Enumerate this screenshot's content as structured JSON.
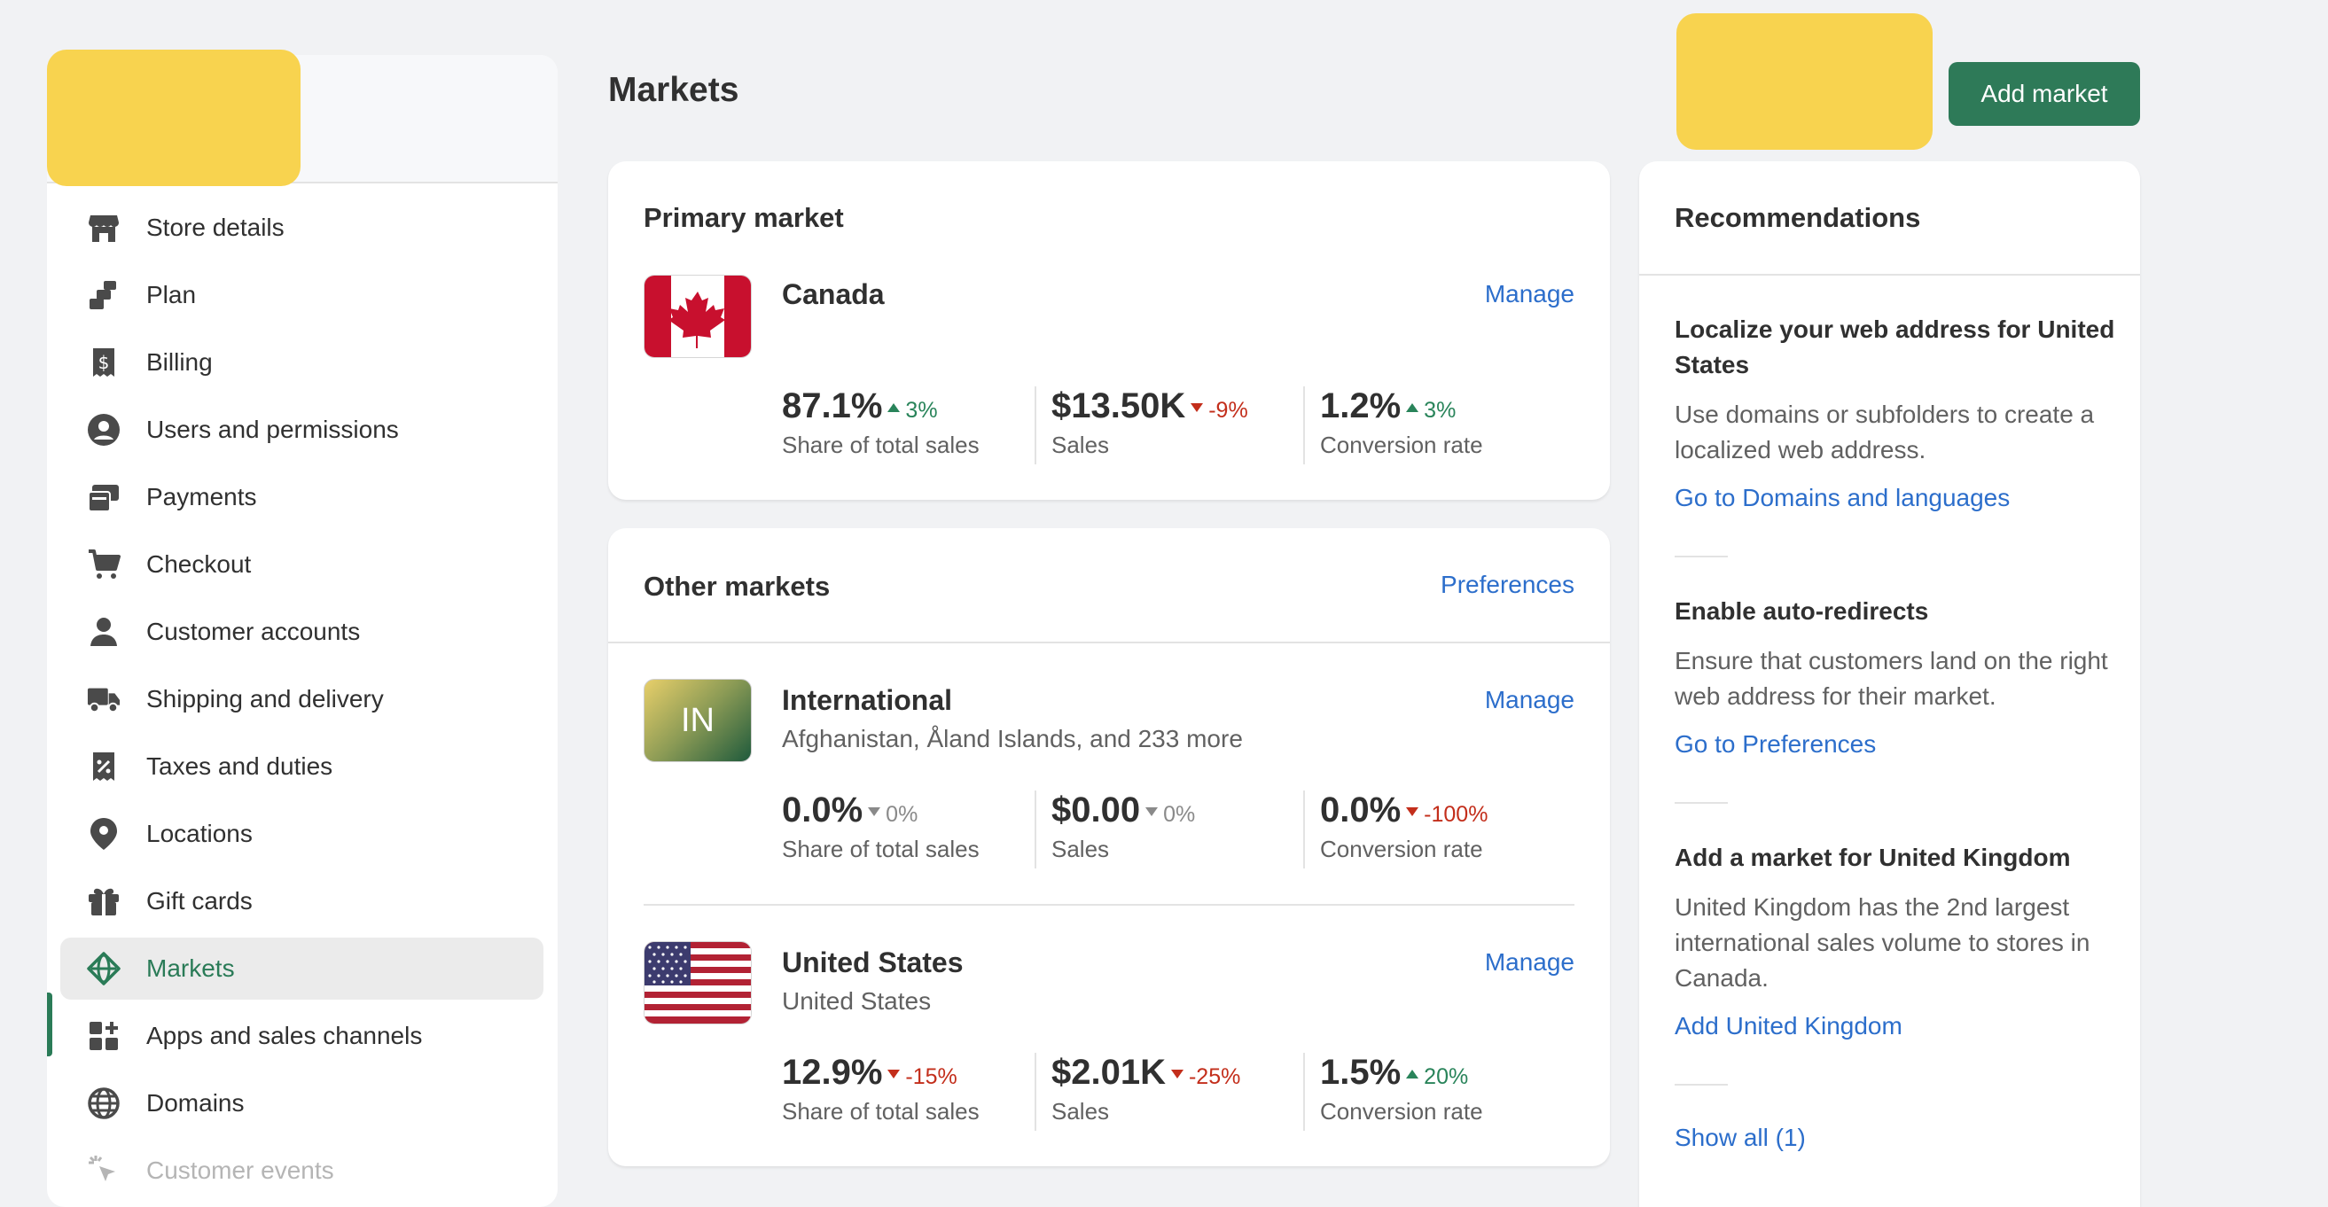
{
  "sidebar": {
    "items": [
      {
        "label": "Store details",
        "icon": "store-icon"
      },
      {
        "label": "Plan",
        "icon": "plan-icon"
      },
      {
        "label": "Billing",
        "icon": "billing-icon"
      },
      {
        "label": "Users and permissions",
        "icon": "user-circle-icon"
      },
      {
        "label": "Payments",
        "icon": "payments-icon"
      },
      {
        "label": "Checkout",
        "icon": "cart-icon"
      },
      {
        "label": "Customer accounts",
        "icon": "person-icon"
      },
      {
        "label": "Shipping and delivery",
        "icon": "truck-icon"
      },
      {
        "label": "Taxes and duties",
        "icon": "receipt-percent-icon"
      },
      {
        "label": "Locations",
        "icon": "location-pin-icon"
      },
      {
        "label": "Gift cards",
        "icon": "gift-icon"
      },
      {
        "label": "Markets",
        "icon": "globe-market-icon",
        "active": true
      },
      {
        "label": "Apps and sales channels",
        "icon": "apps-icon"
      },
      {
        "label": "Domains",
        "icon": "globe-icon"
      },
      {
        "label": "Customer events",
        "icon": "cursor-click-icon",
        "disabled": true
      }
    ]
  },
  "header": {
    "title": "Markets",
    "add_market_label": "Add market"
  },
  "primary": {
    "title": "Primary market",
    "market": {
      "name": "Canada",
      "manage": "Manage",
      "metrics": [
        {
          "value": "87.1%",
          "change": "3%",
          "dir": "up",
          "label": "Share of total sales"
        },
        {
          "value": "$13.50K",
          "change": "-9%",
          "dir": "down",
          "label": "Sales"
        },
        {
          "value": "1.2%",
          "change": "3%",
          "dir": "up",
          "label": "Conversion rate"
        }
      ]
    }
  },
  "other": {
    "title": "Other markets",
    "preferences": "Preferences",
    "markets": [
      {
        "name": "International",
        "badge": "IN",
        "subtitle": "Afghanistan, Åland Islands, and 233 more",
        "manage": "Manage",
        "metrics": [
          {
            "value": "0.0%",
            "change": "0%",
            "dir": "flat",
            "label": "Share of total sales"
          },
          {
            "value": "$0.00",
            "change": "0%",
            "dir": "flat",
            "label": "Sales"
          },
          {
            "value": "0.0%",
            "change": "-100%",
            "dir": "down",
            "label": "Conversion rate"
          }
        ]
      },
      {
        "name": "United States",
        "subtitle": "United States",
        "manage": "Manage",
        "metrics": [
          {
            "value": "12.9%",
            "change": "-15%",
            "dir": "down",
            "label": "Share of total sales"
          },
          {
            "value": "$2.01K",
            "change": "-25%",
            "dir": "down",
            "label": "Sales"
          },
          {
            "value": "1.5%",
            "change": "20%",
            "dir": "up",
            "label": "Conversion rate"
          }
        ]
      }
    ]
  },
  "recommendations": {
    "title": "Recommendations",
    "items": [
      {
        "title": "Localize your web address for United States",
        "body": "Use domains or subfolders to create a localized web address.",
        "link": "Go to Domains and languages"
      },
      {
        "title": "Enable auto-redirects",
        "body": "Ensure that customers land on the right web address for their market.",
        "link": "Go to Preferences"
      },
      {
        "title": "Add a market for United Kingdom",
        "body": "United Kingdom has the 2nd largest international sales volume to stores in Canada.",
        "link": "Add United Kingdom"
      }
    ],
    "show_all": "Show all (1)"
  },
  "colors": {
    "accent_green": "#2e7a58",
    "link_blue": "#2c6ecb",
    "up_green": "#29845a",
    "down_red": "#c32e1b",
    "redaction_yellow": "#f8d34f"
  }
}
